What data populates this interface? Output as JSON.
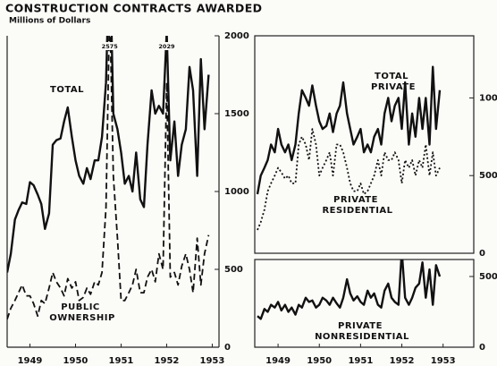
{
  "chart_data": [
    {
      "type": "line",
      "title": "CONSTRUCTION CONTRACTS AWARDED",
      "subtitle": "Millions of Dollars",
      "x": [
        1949,
        1949.08,
        1949.17,
        1949.25,
        1949.33,
        1949.42,
        1949.5,
        1949.58,
        1949.67,
        1949.75,
        1949.83,
        1949.92,
        1950,
        1950.08,
        1950.17,
        1950.25,
        1950.33,
        1950.42,
        1950.5,
        1950.58,
        1950.67,
        1950.75,
        1950.83,
        1950.92,
        1951,
        1951.08,
        1951.17,
        1951.25,
        1951.33,
        1951.42,
        1951.5,
        1951.58,
        1951.67,
        1951.75,
        1951.83,
        1951.92,
        1952,
        1952.08,
        1952.17,
        1952.25,
        1952.33,
        1952.42,
        1952.5,
        1952.58,
        1952.67,
        1952.75,
        1952.83,
        1952.92,
        1953,
        1953.08,
        1953.17,
        1953.25,
        1953.33,
        1953.42
      ],
      "series": [
        {
          "name": "TOTAL",
          "color": "#111111",
          "style": "solid",
          "values": [
            480,
            600,
            820,
            880,
            930,
            920,
            1060,
            1040,
            980,
            920,
            760,
            860,
            1300,
            1330,
            1340,
            1450,
            1540,
            1350,
            1200,
            1100,
            1050,
            1150,
            1080,
            1200,
            1200,
            1350,
            1700,
            2575,
            1500,
            1400,
            1250,
            1050,
            1100,
            1000,
            1250,
            950,
            900,
            1300,
            1650,
            1500,
            1550,
            1500,
            2029,
            1200,
            1450,
            1100,
            1300,
            1400,
            1800,
            1650,
            1100,
            1850,
            1400,
            1750
          ]
        },
        {
          "name": "PUBLIC OWNERSHIP",
          "color": "#111111",
          "style": "dashed",
          "values": [
            180,
            250,
            300,
            350,
            400,
            330,
            330,
            280,
            200,
            300,
            280,
            380,
            480,
            420,
            380,
            330,
            440,
            380,
            420,
            300,
            320,
            380,
            340,
            420,
            400,
            480,
            900,
            2200,
            1100,
            700,
            300,
            300,
            350,
            400,
            500,
            350,
            350,
            450,
            500,
            420,
            600,
            500,
            1700,
            450,
            480,
            400,
            520,
            600,
            500,
            350,
            700,
            400,
            600,
            720
          ]
        }
      ],
      "annotations": [
        {
          "text": "2575",
          "x": 1951.25
        },
        {
          "text": "2029",
          "x": 1952.5
        }
      ],
      "xlim": [
        1949,
        1953.55
      ],
      "xticks": [
        {
          "value": 1949.5,
          "label": "1949"
        },
        {
          "value": 1950.5,
          "label": "1950"
        },
        {
          "value": 1951.5,
          "label": "1951"
        },
        {
          "value": 1952.5,
          "label": "1952"
        },
        {
          "value": 1953.5,
          "label": "1953"
        }
      ],
      "ylim": [
        0,
        2000
      ],
      "yticks": [
        0,
        500,
        1000,
        1500,
        2000
      ]
    },
    {
      "type": "line",
      "x": [
        1949,
        1949.08,
        1949.17,
        1949.25,
        1949.33,
        1949.42,
        1949.5,
        1949.58,
        1949.67,
        1949.75,
        1949.83,
        1949.92,
        1950,
        1950.08,
        1950.17,
        1950.25,
        1950.33,
        1950.42,
        1950.5,
        1950.58,
        1950.67,
        1950.75,
        1950.83,
        1950.92,
        1951,
        1951.08,
        1951.17,
        1951.25,
        1951.33,
        1951.42,
        1951.5,
        1951.58,
        1951.67,
        1951.75,
        1951.83,
        1951.92,
        1952,
        1952.08,
        1952.17,
        1952.25,
        1952.33,
        1952.42,
        1952.5,
        1952.58,
        1952.67,
        1952.75,
        1952.83,
        1952.92,
        1953,
        1953.08,
        1953.17,
        1953.25,
        1953.33,
        1953.42
      ],
      "series": [
        {
          "name": "TOTAL PRIVATE",
          "color": "#111111",
          "style": "solid",
          "values": [
            380,
            500,
            550,
            600,
            700,
            650,
            800,
            700,
            650,
            700,
            600,
            700,
            900,
            1050,
            1000,
            950,
            1080,
            950,
            850,
            800,
            820,
            900,
            780,
            900,
            950,
            1100,
            900,
            800,
            700,
            750,
            800,
            650,
            700,
            650,
            750,
            800,
            700,
            900,
            1000,
            850,
            950,
            1000,
            800,
            1100,
            700,
            900,
            750,
            1000,
            800,
            1000,
            700,
            1200,
            800,
            1050
          ]
        },
        {
          "name": "PRIVATE RESIDENTIAL",
          "color": "#111111",
          "style": "dotted",
          "values": [
            150,
            200,
            280,
            400,
            450,
            500,
            550,
            520,
            480,
            500,
            450,
            450,
            700,
            750,
            700,
            600,
            800,
            700,
            500,
            550,
            600,
            650,
            500,
            700,
            700,
            650,
            550,
            450,
            400,
            400,
            450,
            380,
            400,
            450,
            500,
            600,
            500,
            650,
            600,
            600,
            650,
            600,
            450,
            600,
            550,
            600,
            500,
            600,
            550,
            700,
            500,
            650,
            500,
            550
          ]
        }
      ],
      "xlim": [
        1949,
        1953.55
      ],
      "ylim": [
        0,
        1400
      ],
      "yticks": [
        0,
        500,
        1000
      ]
    },
    {
      "type": "line",
      "x": [
        1949,
        1949.08,
        1949.17,
        1949.25,
        1949.33,
        1949.42,
        1949.5,
        1949.58,
        1949.67,
        1949.75,
        1949.83,
        1949.92,
        1950,
        1950.08,
        1950.17,
        1950.25,
        1950.33,
        1950.42,
        1950.5,
        1950.58,
        1950.67,
        1950.75,
        1950.83,
        1950.92,
        1951,
        1951.08,
        1951.17,
        1951.25,
        1951.33,
        1951.42,
        1951.5,
        1951.58,
        1951.67,
        1951.75,
        1951.83,
        1951.92,
        1952,
        1952.08,
        1952.17,
        1952.25,
        1952.33,
        1952.42,
        1952.5,
        1952.58,
        1952.67,
        1952.75,
        1952.83,
        1952.92,
        1953,
        1953.08,
        1953.17,
        1953.25,
        1953.33,
        1953.42
      ],
      "series": [
        {
          "name": "PRIVATE NONRESIDENTIAL",
          "color": "#111111",
          "style": "solid",
          "values": [
            220,
            200,
            270,
            250,
            300,
            280,
            320,
            260,
            300,
            250,
            280,
            230,
            300,
            280,
            350,
            320,
            330,
            280,
            300,
            350,
            330,
            300,
            350,
            310,
            280,
            350,
            480,
            380,
            330,
            360,
            320,
            300,
            400,
            350,
            380,
            300,
            280,
            400,
            450,
            350,
            320,
            300,
            680,
            350,
            300,
            350,
            420,
            450,
            600,
            350,
            550,
            300,
            580,
            500
          ]
        }
      ],
      "xlim": [
        1949,
        1953.55
      ],
      "xticks": [
        {
          "value": 1949.5,
          "label": "1949"
        },
        {
          "value": 1950.5,
          "label": "1950"
        },
        {
          "value": 1951.5,
          "label": "1951"
        },
        {
          "value": 1952.5,
          "label": "1952"
        },
        {
          "value": 1953.5,
          "label": "1953"
        }
      ],
      "ylim": [
        0,
        620
      ],
      "yticks": [
        0,
        500
      ]
    }
  ]
}
